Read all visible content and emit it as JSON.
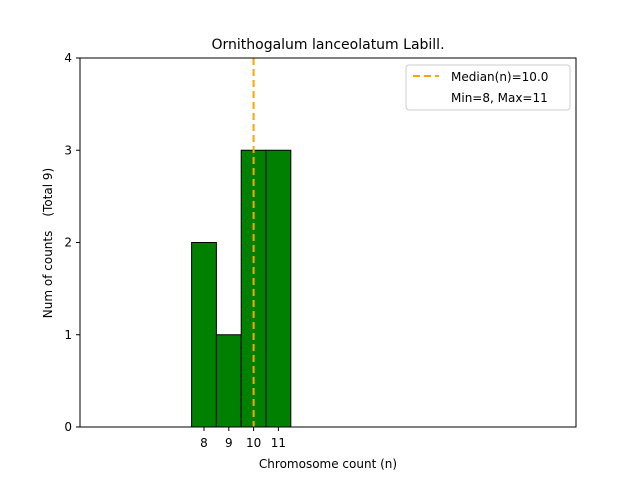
{
  "chart_data": {
    "type": "bar",
    "title": "Ornithogalum lanceolatum Labill.",
    "xlabel": "Chromosome count (n)",
    "ylabel": "Num of counts",
    "ylabel_total": "(Total 9)",
    "categories": [
      8,
      9,
      10,
      11
    ],
    "values": [
      2,
      1,
      3,
      3
    ],
    "xlim": [
      3.0,
      23.0
    ],
    "baseline_range": [
      3.0,
      17.5
    ],
    "ylim": [
      0,
      4
    ],
    "yticks": [
      0,
      1,
      2,
      3,
      4
    ],
    "xticks": [
      "8",
      "9",
      "10",
      "11"
    ],
    "median": 10.0,
    "min": 8,
    "max": 11,
    "legend": {
      "median_label": "Median(n)=10.0",
      "range_label": "Min=8, Max=11",
      "position": "top-right"
    },
    "grid": false
  },
  "colors": {
    "bar_fill": "#008000",
    "bar_edge": "#000000",
    "median_line": "#FFA500",
    "axis": "#000000"
  }
}
